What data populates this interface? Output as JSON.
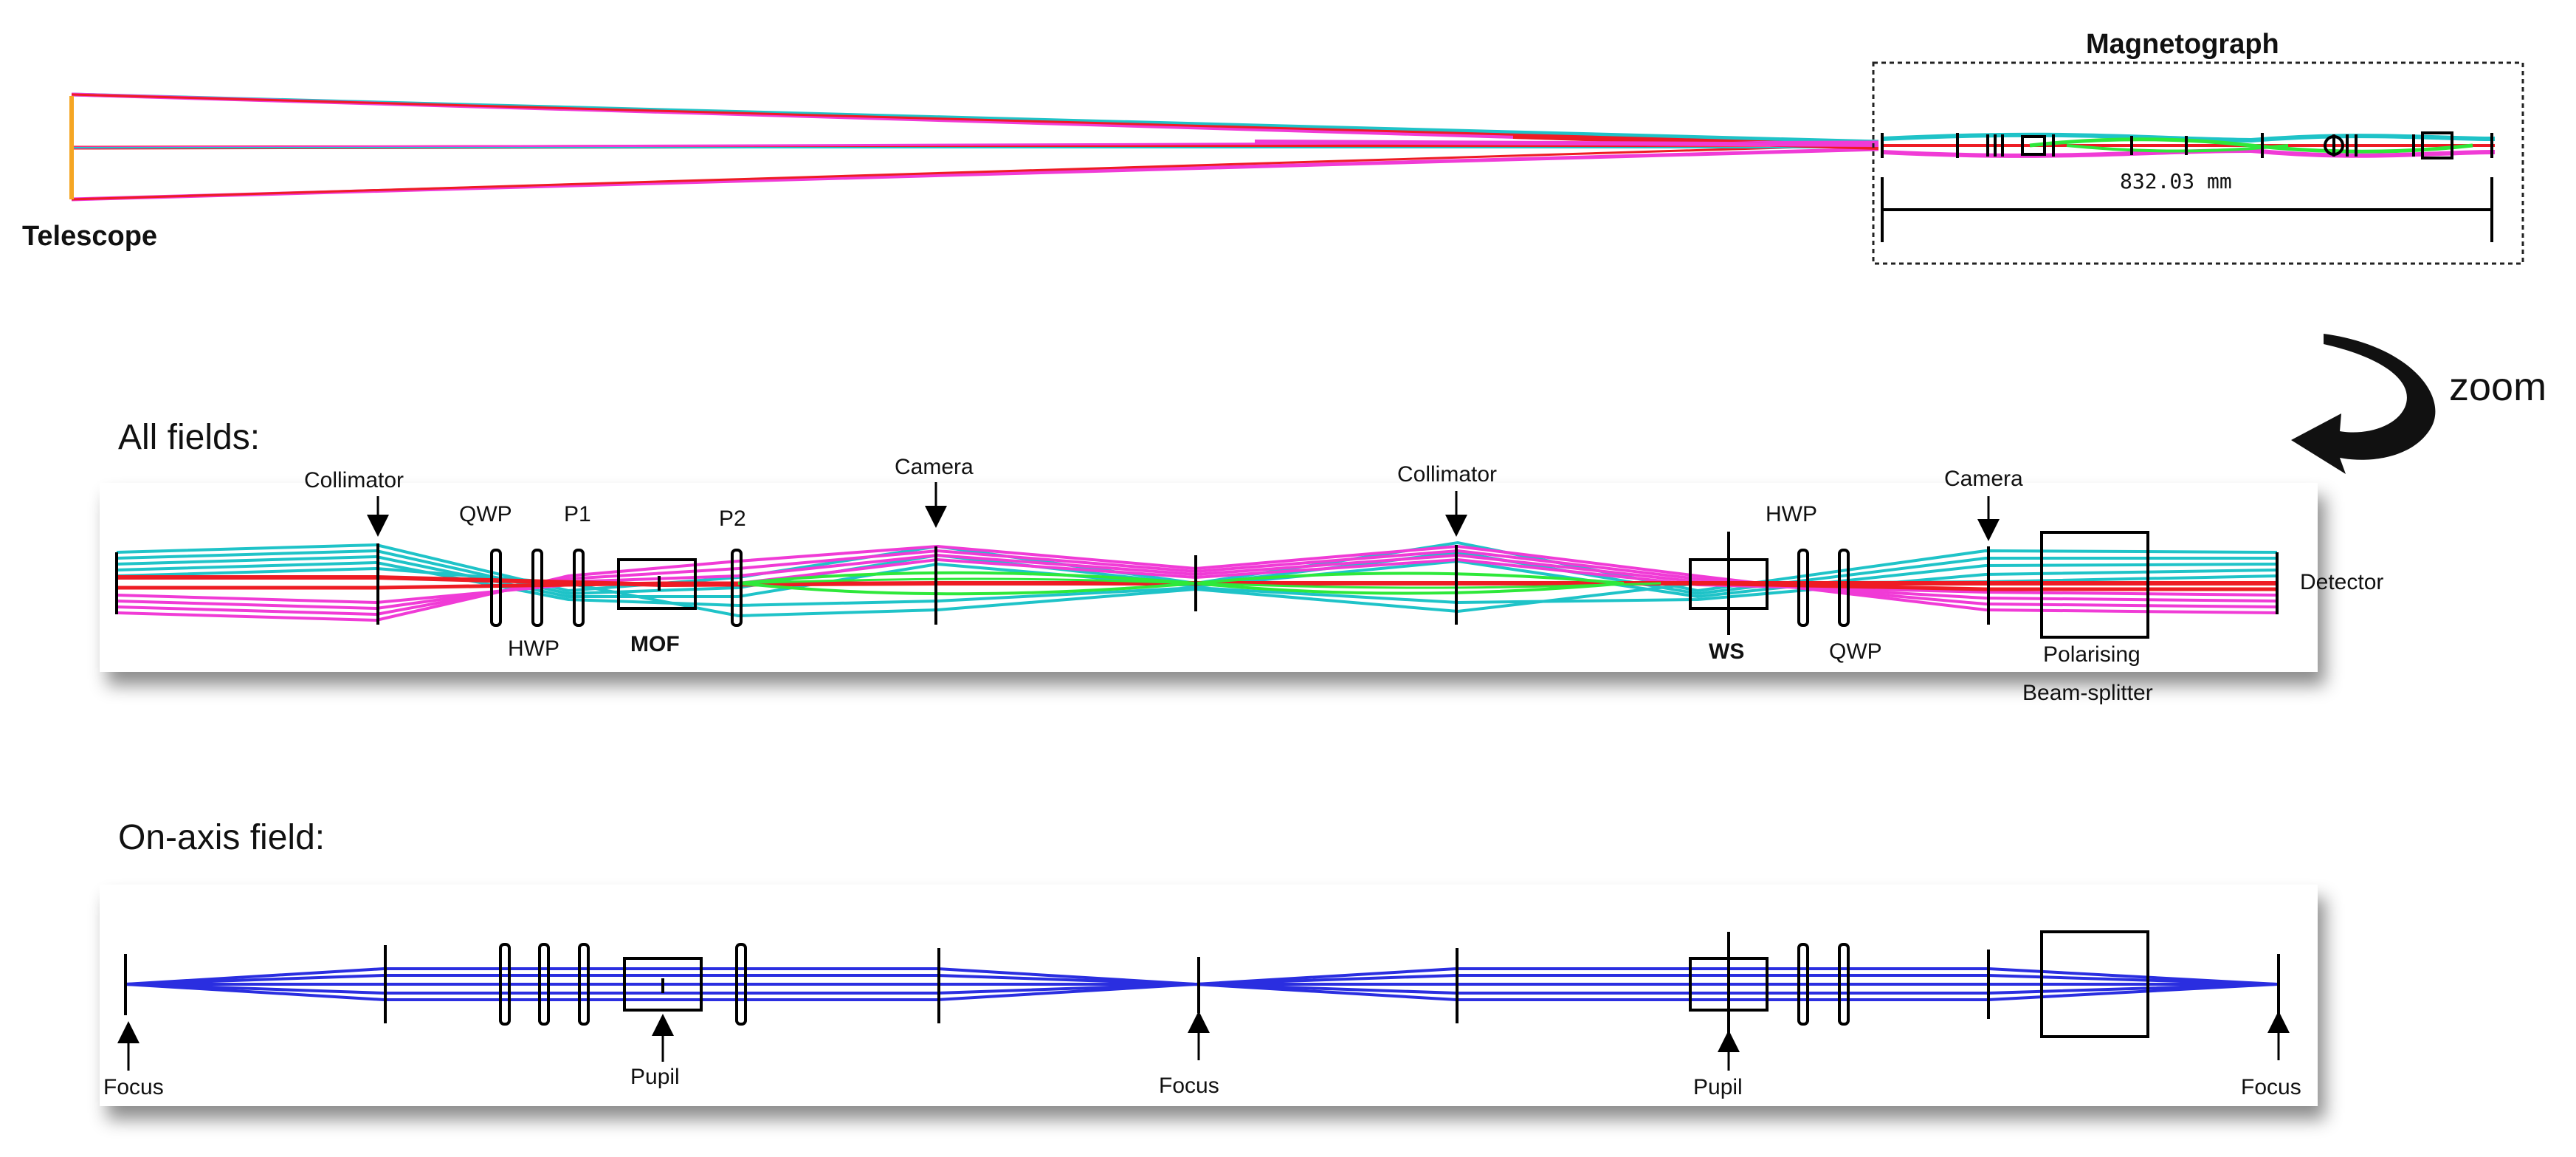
{
  "overview": {
    "telescope_label": "Telescope",
    "magnetograph_label": "Magnetograph",
    "length_label": "832.03  mm"
  },
  "zoom_label": "zoom",
  "all_fields": {
    "title": "All fields:",
    "labels": {
      "collimator1": "Collimator",
      "qwp1": "QWP",
      "p1": "P1",
      "p2": "P2",
      "camera1": "Camera",
      "hwp1": "HWP",
      "mof": "MOF",
      "collimator2": "Collimator",
      "hwp2": "HWP",
      "camera2": "Camera",
      "detector": "Detector",
      "ws": "WS",
      "qwp2": "QWP",
      "pbs_line1": "Polarising",
      "pbs_line2": "Beam-splitter"
    }
  },
  "on_axis": {
    "title": "On-axis field:",
    "labels": {
      "focus1": "Focus",
      "pupil1": "Pupil",
      "focus2": "Focus",
      "pupil2": "Pupil",
      "focus3": "Focus"
    }
  },
  "colors": {
    "cyan_rays": "#1fc3c8",
    "magenta_rays": "#f03bd6",
    "red_rays": "#ee1c24",
    "green_rays": "#2ee83a",
    "blue_rays": "#2a2ee0",
    "orange_aperture": "#f5a623",
    "outline": "#000000"
  }
}
